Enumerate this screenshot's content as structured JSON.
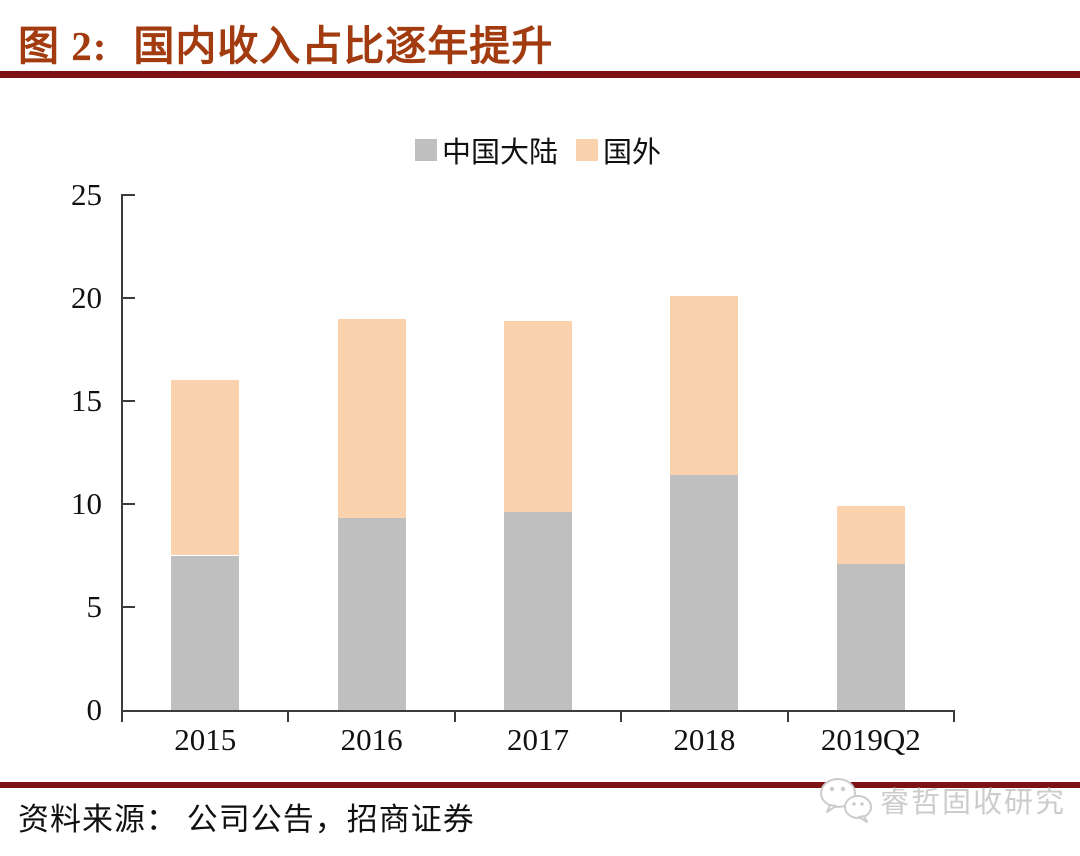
{
  "figure": {
    "number_label": "图 2:",
    "title": "国内收入占比逐年提升"
  },
  "chart_data": {
    "type": "bar",
    "stacked": true,
    "title": "国内收入占比逐年提升",
    "categories": [
      "2015",
      "2016",
      "2017",
      "2018",
      "2019Q2"
    ],
    "series": [
      {
        "name": "中国大陆",
        "color": "#BFBFBF",
        "values": [
          7.5,
          9.3,
          9.6,
          11.4,
          7.1
        ]
      },
      {
        "name": "国外",
        "color": "#FBD2AE",
        "values": [
          8.5,
          9.7,
          9.3,
          8.7,
          2.8
        ]
      }
    ],
    "xlabel": "",
    "ylabel": "",
    "ylim": [
      0,
      25
    ],
    "yticks": [
      0,
      5,
      10,
      15,
      20,
      25
    ],
    "legend_position": "top",
    "grid": false
  },
  "footer": {
    "source": "资料来源： 公司公告，招商证券",
    "watermark": "睿哲固收研究"
  },
  "colors": {
    "title_red": "#A23B0F",
    "rule_red": "#7E1113",
    "axis": "#3C3C3C",
    "series_gray": "#BFBFBF",
    "series_peach": "#FBD2AE",
    "watermark_gray": "#CCCCCC"
  }
}
